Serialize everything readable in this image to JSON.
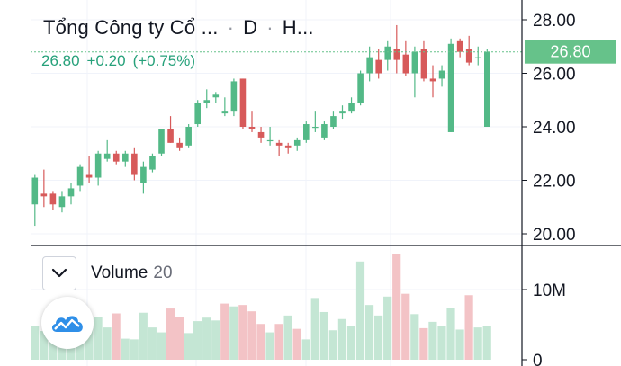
{
  "header": {
    "symbol_name": "Tổng Công ty Cổ ...",
    "interval": "D",
    "exchange": "H...",
    "last_price": "26.80",
    "change": "+0.20",
    "change_percent": "(+0.75%)"
  },
  "volume_legend": {
    "label": "Volume",
    "length": "20"
  },
  "colors": {
    "up": "#26a69a",
    "up_candle": "#53b987",
    "down": "#eb4d5c",
    "down_candle": "#d75a5a",
    "grid": "#f0f3fa",
    "axis": "#131722",
    "price_label_bg": "#66c28a"
  },
  "icons": {
    "collapse": "chevron-down-icon",
    "logo": "cloud-logo-icon"
  },
  "chart_data": [
    {
      "type": "candlestick",
      "title": "",
      "y_ticks": [
        "28.00",
        "26.00",
        "24.00",
        "22.00",
        "20.00"
      ],
      "ylim": [
        19.6,
        28.6
      ],
      "current_price_label": "26.80",
      "ohlc": [
        [
          21.1,
          22.2,
          20.3,
          22.1
        ],
        [
          21.5,
          22.4,
          21.0,
          21.4
        ],
        [
          21.5,
          21.6,
          20.9,
          21.1
        ],
        [
          21.0,
          21.6,
          20.8,
          21.4
        ],
        [
          21.4,
          21.9,
          21.1,
          21.7
        ],
        [
          21.8,
          22.6,
          21.6,
          22.5
        ],
        [
          22.2,
          22.9,
          21.9,
          22.1
        ],
        [
          22.1,
          23.1,
          21.8,
          23.0
        ],
        [
          22.8,
          23.5,
          22.7,
          23.0
        ],
        [
          23.0,
          23.1,
          22.6,
          22.7
        ],
        [
          22.7,
          23.1,
          22.5,
          23.0
        ],
        [
          23.0,
          23.2,
          22.0,
          22.2
        ],
        [
          21.9,
          22.7,
          21.5,
          22.5
        ],
        [
          22.4,
          23.0,
          22.3,
          22.9
        ],
        [
          23.0,
          23.9,
          22.9,
          23.9
        ],
        [
          23.9,
          24.4,
          23.4,
          23.4
        ],
        [
          23.4,
          23.6,
          23.1,
          23.2
        ],
        [
          23.3,
          24.1,
          23.2,
          24.0
        ],
        [
          24.1,
          25.0,
          24.0,
          24.9
        ],
        [
          24.9,
          25.4,
          24.7,
          25.0
        ],
        [
          25.1,
          25.3,
          24.9,
          25.2
        ],
        [
          24.5,
          25.1,
          24.4,
          24.6
        ],
        [
          24.6,
          25.8,
          24.4,
          25.7
        ],
        [
          25.8,
          25.8,
          23.9,
          24.0
        ],
        [
          24.0,
          24.6,
          23.8,
          23.9
        ],
        [
          23.8,
          24.0,
          23.4,
          23.6
        ],
        [
          23.5,
          24.0,
          23.3,
          23.5
        ],
        [
          23.4,
          23.5,
          22.9,
          23.3
        ],
        [
          23.3,
          23.4,
          23.0,
          23.2
        ],
        [
          23.3,
          23.6,
          23.1,
          23.5
        ],
        [
          23.5,
          24.2,
          23.4,
          24.1
        ],
        [
          24.0,
          24.6,
          23.8,
          24.0
        ],
        [
          23.6,
          24.2,
          23.5,
          24.1
        ],
        [
          24.0,
          24.6,
          23.9,
          24.4
        ],
        [
          24.5,
          24.8,
          24.3,
          24.6
        ],
        [
          24.6,
          25.1,
          24.5,
          24.9
        ],
        [
          24.9,
          26.1,
          24.8,
          26.0
        ],
        [
          26.0,
          27.0,
          25.7,
          26.6
        ],
        [
          26.5,
          26.9,
          25.8,
          26.0
        ],
        [
          26.5,
          27.2,
          26.1,
          27.0
        ],
        [
          26.9,
          27.8,
          26.0,
          26.5
        ],
        [
          26.7,
          27.2,
          25.9,
          26.0
        ],
        [
          26.0,
          27.0,
          25.1,
          26.8
        ],
        [
          26.9,
          27.2,
          25.7,
          25.8
        ],
        [
          25.8,
          26.3,
          25.1,
          25.7
        ],
        [
          25.8,
          26.3,
          25.5,
          26.1
        ],
        [
          23.8,
          27.3,
          23.8,
          27.1
        ],
        [
          27.2,
          27.3,
          26.6,
          26.8
        ],
        [
          26.9,
          27.4,
          26.3,
          26.4
        ],
        [
          26.6,
          27.0,
          26.3,
          26.6
        ],
        [
          24.0,
          26.9,
          24.0,
          26.8
        ]
      ]
    },
    {
      "type": "bar",
      "title": "Volume",
      "y_ticks": [
        "10M",
        "0"
      ],
      "ylim": [
        0,
        15000000
      ],
      "values": [
        4800000,
        4100000,
        5200000,
        4500000,
        6500000,
        4100000,
        5000000,
        6100000,
        4600000,
        6600000,
        3000000,
        2900000,
        6700000,
        4600000,
        3900000,
        7300000,
        6100000,
        3800000,
        5500000,
        6000000,
        5600000,
        8000000,
        7600000,
        7800000,
        6900000,
        5100000,
        3900000,
        5100000,
        6300000,
        4400000,
        2900000,
        8800000,
        6800000,
        4200000,
        5800000,
        4800000,
        14000000,
        7800000,
        6300000,
        9000000,
        15100000,
        9400000,
        6500000,
        4500000,
        5400000,
        4800000,
        7400000,
        4300000,
        9200000,
        4600000,
        4800000
      ],
      "direction": [
        "u",
        "u",
        "u",
        "u",
        "u",
        "u",
        "u",
        "u",
        "u",
        "d",
        "u",
        "u",
        "u",
        "u",
        "u",
        "d",
        "d",
        "u",
        "u",
        "u",
        "u",
        "d",
        "u",
        "d",
        "d",
        "d",
        "u",
        "d",
        "u",
        "d",
        "u",
        "u",
        "u",
        "u",
        "u",
        "u",
        "u",
        "u",
        "u",
        "u",
        "d",
        "d",
        "u",
        "d",
        "u",
        "u",
        "u",
        "u",
        "d",
        "u",
        "u"
      ]
    }
  ]
}
